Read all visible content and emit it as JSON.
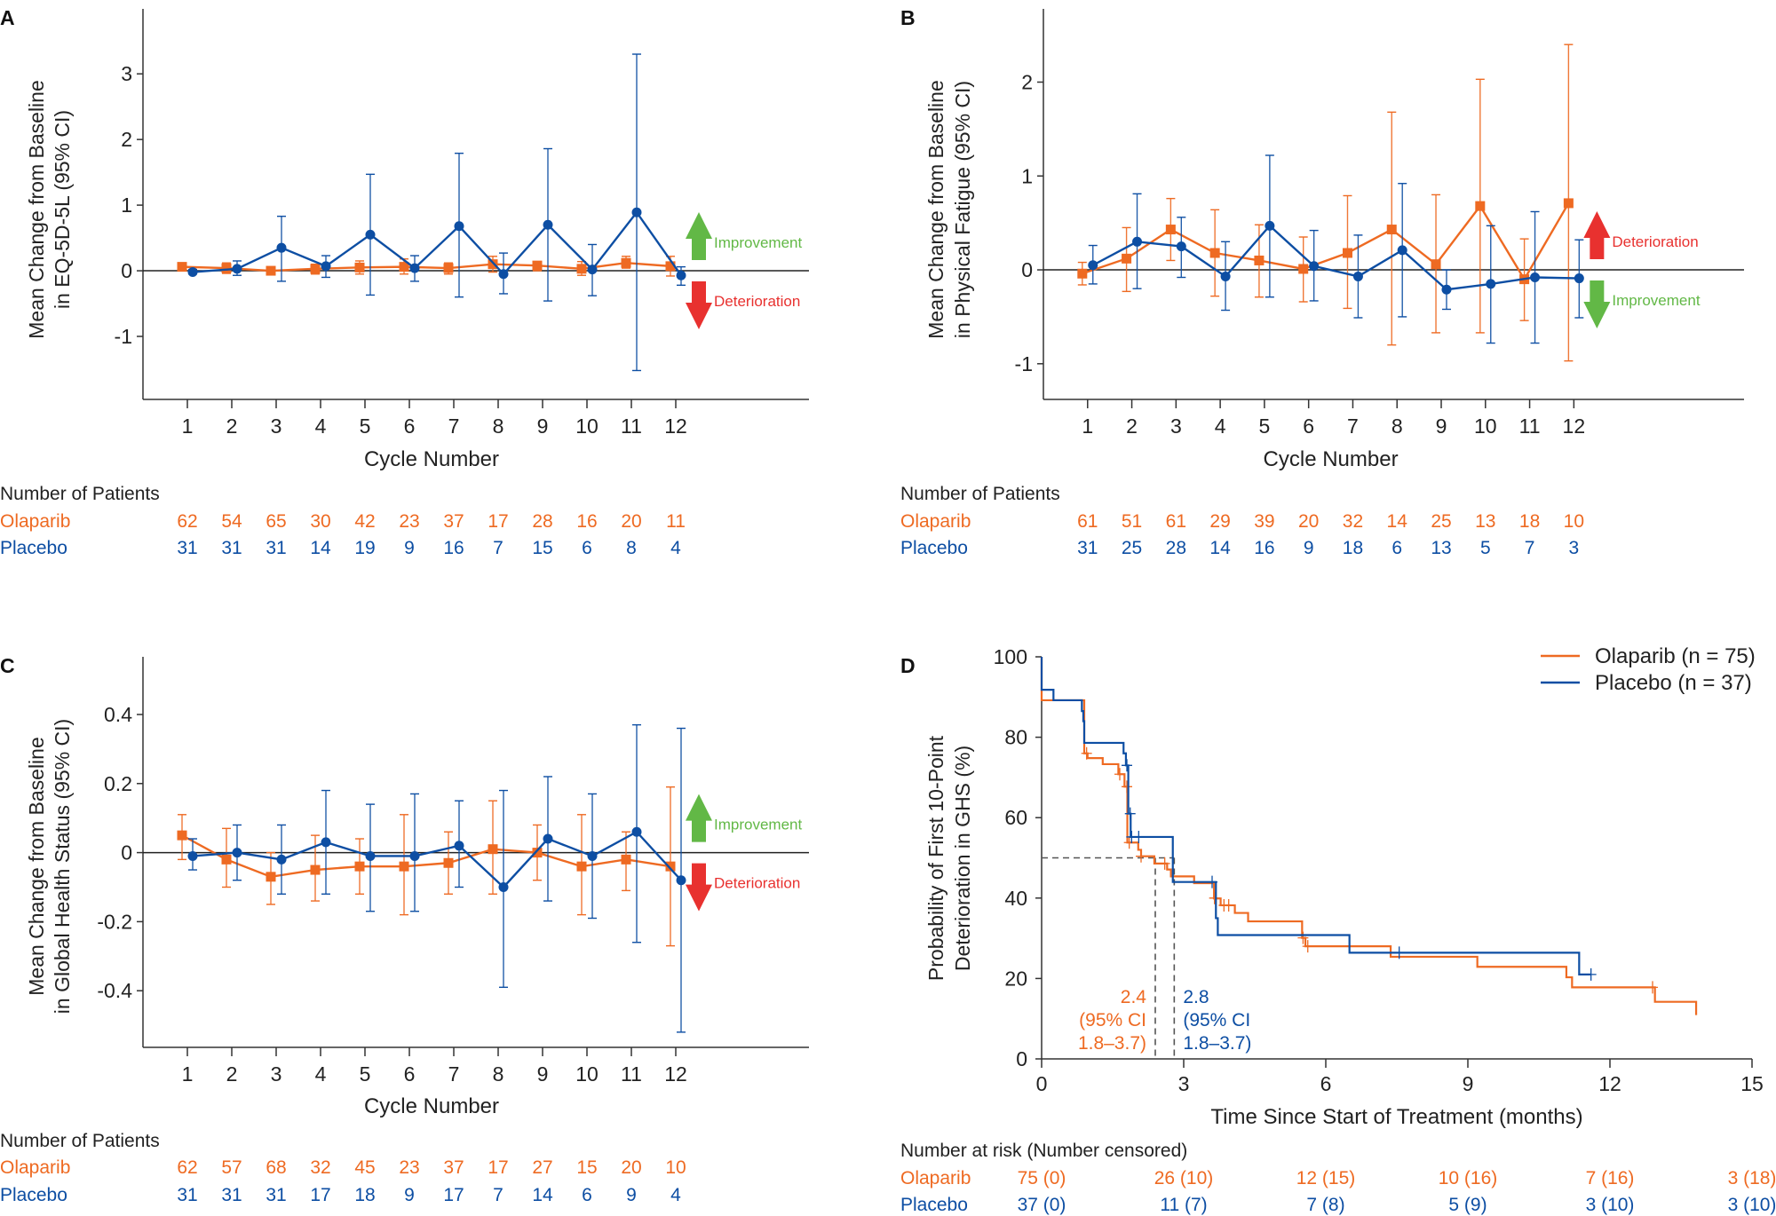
{
  "colors": {
    "olaparib": "#EE6A22",
    "placebo": "#0D4EA3",
    "improvement": "#62B846",
    "deterioration": "#E8312F",
    "axis": "#333333"
  },
  "chart_data": [
    {
      "panel": "A",
      "type": "line",
      "ylabel": [
        "Mean Change from Baseline",
        "in EQ-5D-5L (95% CI)"
      ],
      "xlabel": "Cycle Number",
      "categories": [
        1,
        2,
        3,
        4,
        5,
        6,
        7,
        8,
        9,
        10,
        11,
        12
      ],
      "yticks": [
        -1,
        0,
        1,
        2,
        3
      ],
      "ylim": [
        -1.96,
        3.99
      ],
      "xlim": [
        0,
        15
      ],
      "arrows": {
        "up": "Improvement",
        "down": "Deterioration",
        "up_color": "improvement",
        "down_color": "deterioration"
      },
      "series": [
        {
          "name": "Olaparib",
          "color": "#EE6A22",
          "marker": "square",
          "values": [
            0.06,
            0.04,
            0.0,
            0.03,
            0.05,
            0.06,
            0.04,
            0.1,
            0.08,
            0.03,
            0.12,
            0.07
          ],
          "ci_lower": [
            0.0,
            -0.04,
            -0.04,
            -0.05,
            -0.05,
            -0.05,
            -0.05,
            -0.02,
            0.0,
            -0.07,
            0.04,
            -0.08
          ],
          "ci_upper": [
            0.1,
            0.12,
            0.04,
            0.1,
            0.15,
            0.18,
            0.12,
            0.22,
            0.14,
            0.14,
            0.22,
            0.22
          ]
        },
        {
          "name": "Placebo",
          "color": "#0D4EA3",
          "marker": "circle",
          "values": [
            -0.02,
            0.03,
            0.35,
            0.07,
            0.55,
            0.04,
            0.68,
            -0.05,
            0.7,
            0.02,
            0.89,
            -0.07
          ],
          "ci_lower": [
            -0.05,
            -0.07,
            -0.16,
            -0.1,
            -0.37,
            -0.16,
            -0.4,
            -0.35,
            -0.46,
            -0.38,
            -1.52,
            -0.22
          ],
          "ci_upper": [
            0.02,
            0.15,
            0.83,
            0.23,
            1.47,
            0.23,
            1.79,
            0.27,
            1.86,
            0.4,
            3.3,
            0.06
          ]
        }
      ],
      "patients": {
        "label": "Number of Patients",
        "rows": [
          {
            "name": "Olaparib",
            "values": [
              62,
              54,
              65,
              30,
              42,
              23,
              37,
              17,
              28,
              16,
              20,
              11
            ]
          },
          {
            "name": "Placebo",
            "values": [
              31,
              31,
              31,
              14,
              19,
              9,
              16,
              7,
              15,
              6,
              8,
              4
            ]
          }
        ]
      }
    },
    {
      "panel": "B",
      "type": "line",
      "ylabel": [
        "Mean Change from Baseline",
        "in Physical Fatigue (95% CI)"
      ],
      "xlabel": "Cycle Number",
      "categories": [
        1,
        2,
        3,
        4,
        5,
        6,
        7,
        8,
        9,
        10,
        11,
        12
      ],
      "yticks": [
        -1,
        0,
        1,
        2
      ],
      "ylim": [
        -1.38,
        2.78
      ],
      "xlim": [
        0,
        15.85
      ],
      "arrows": {
        "up": "Deterioration",
        "down": "Improvement",
        "up_color": "deterioration",
        "down_color": "improvement"
      },
      "series": [
        {
          "name": "Olaparib",
          "color": "#EE6A22",
          "marker": "square",
          "values": [
            -0.04,
            0.12,
            0.43,
            0.18,
            0.1,
            0.01,
            0.18,
            0.43,
            0.06,
            0.68,
            -0.1,
            0.71
          ],
          "ci_lower": [
            -0.16,
            -0.23,
            0.1,
            -0.28,
            -0.29,
            -0.34,
            -0.41,
            -0.8,
            -0.67,
            -0.67,
            -0.54,
            -0.97
          ],
          "ci_upper": [
            0.08,
            0.45,
            0.76,
            0.64,
            0.48,
            0.35,
            0.79,
            1.68,
            0.8,
            2.03,
            0.33,
            2.4
          ]
        },
        {
          "name": "Placebo",
          "color": "#0D4EA3",
          "marker": "circle",
          "values": [
            0.05,
            0.3,
            0.25,
            -0.07,
            0.47,
            0.04,
            -0.07,
            0.21,
            -0.21,
            -0.15,
            -0.08,
            -0.09
          ],
          "ci_lower": [
            -0.15,
            -0.2,
            -0.08,
            -0.43,
            -0.29,
            -0.33,
            -0.51,
            -0.5,
            -0.42,
            -0.78,
            -0.78,
            -0.51
          ],
          "ci_upper": [
            0.26,
            0.81,
            0.56,
            0.3,
            1.22,
            0.42,
            0.37,
            0.92,
            0.0,
            0.47,
            0.62,
            0.32
          ]
        }
      ],
      "patients": {
        "label": "Number of Patients",
        "rows": [
          {
            "name": "Olaparib",
            "values": [
              61,
              51,
              61,
              29,
              39,
              20,
              32,
              14,
              25,
              13,
              18,
              10
            ]
          },
          {
            "name": "Placebo",
            "values": [
              31,
              25,
              28,
              14,
              16,
              9,
              18,
              6,
              13,
              5,
              7,
              3
            ]
          }
        ]
      }
    },
    {
      "panel": "C",
      "type": "line",
      "ylabel": [
        "Mean Change from Baseline",
        "in Global Health Status (95% CI)"
      ],
      "xlabel": "Cycle Number",
      "categories": [
        1,
        2,
        3,
        4,
        5,
        6,
        7,
        8,
        9,
        10,
        11,
        12
      ],
      "yticks": [
        -0.4,
        -0.2,
        0,
        0.2,
        0.4
      ],
      "ylim": [
        -0.564,
        0.567
      ],
      "xlim": [
        0,
        15
      ],
      "arrows": {
        "up": "Improvement",
        "down": "Deterioration",
        "up_color": "improvement",
        "down_color": "deterioration"
      },
      "series": [
        {
          "name": "Olaparib",
          "color": "#EE6A22",
          "marker": "square",
          "values": [
            0.05,
            -0.02,
            -0.07,
            -0.05,
            -0.04,
            -0.04,
            -0.03,
            0.01,
            0.0,
            -0.04,
            -0.02,
            -0.04
          ],
          "ci_lower": [
            -0.02,
            -0.1,
            -0.15,
            -0.14,
            -0.12,
            -0.18,
            -0.12,
            -0.12,
            -0.08,
            -0.18,
            -0.11,
            -0.27
          ],
          "ci_upper": [
            0.11,
            0.07,
            0.0,
            0.05,
            0.04,
            0.11,
            0.06,
            0.15,
            0.08,
            0.11,
            0.06,
            0.19
          ]
        },
        {
          "name": "Placebo",
          "color": "#0D4EA3",
          "marker": "circle",
          "values": [
            -0.01,
            0.0,
            -0.02,
            0.03,
            -0.01,
            -0.01,
            0.02,
            -0.1,
            0.04,
            -0.01,
            0.06,
            -0.08
          ],
          "ci_lower": [
            -0.05,
            -0.08,
            -0.12,
            -0.12,
            -0.17,
            -0.17,
            -0.1,
            -0.39,
            -0.14,
            -0.19,
            -0.26,
            -0.52
          ],
          "ci_upper": [
            0.04,
            0.08,
            0.08,
            0.18,
            0.14,
            0.17,
            0.15,
            0.18,
            0.22,
            0.17,
            0.37,
            0.36
          ]
        }
      ],
      "patients": {
        "label": "Number of Patients",
        "rows": [
          {
            "name": "Olaparib",
            "values": [
              62,
              57,
              68,
              32,
              45,
              23,
              37,
              17,
              27,
              15,
              20,
              10
            ]
          },
          {
            "name": "Placebo",
            "values": [
              31,
              31,
              31,
              17,
              18,
              9,
              17,
              7,
              14,
              6,
              9,
              4
            ]
          }
        ]
      }
    },
    {
      "panel": "D",
      "type": "line",
      "subtype": "kaplan-meier step",
      "ylabel": [
        "Probability of First 10-Point",
        "Deterioration in GHS (%)"
      ],
      "xlabel": "Time Since Start of Treatment (months)",
      "xticks": [
        0,
        3,
        6,
        9,
        12,
        15
      ],
      "yticks": [
        0,
        20,
        40,
        60,
        80,
        100
      ],
      "xlim": [
        0,
        15
      ],
      "ylim": [
        0,
        100
      ],
      "legend_position": "top-right",
      "series": [
        {
          "name": "Olaparib (n = 75)",
          "color": "#EE6A22",
          "steps": [
            [
              0,
              100
            ],
            [
              0,
              89.2
            ],
            [
              0.9,
              76
            ],
            [
              0.97,
              74.8
            ],
            [
              1.29,
              73.3
            ],
            [
              1.62,
              70.8
            ],
            [
              1.75,
              67.7
            ],
            [
              1.81,
              53.8
            ],
            [
              2.04,
              52
            ],
            [
              2.1,
              50.4
            ],
            [
              2.38,
              48.6
            ],
            [
              2.65,
              47.1
            ],
            [
              2.73,
              45.4
            ],
            [
              3.22,
              43.7
            ],
            [
              3.64,
              39.9
            ],
            [
              3.78,
              38.2
            ],
            [
              4.08,
              36.3
            ],
            [
              4.36,
              34.2
            ],
            [
              5.5,
              30.1
            ],
            [
              5.57,
              28
            ],
            [
              7.37,
              25.4
            ],
            [
              9.2,
              22.9
            ],
            [
              11.08,
              20.3
            ],
            [
              11.2,
              17.8
            ],
            [
              12.95,
              14.2
            ],
            [
              13.82,
              10.9
            ]
          ],
          "end": 13.82,
          "censored": [
            [
              0.95,
              76
            ],
            [
              1.65,
              70.8
            ],
            [
              1.8,
              67.7
            ],
            [
              1.85,
              53.8
            ],
            [
              2.1,
              50.4
            ],
            [
              2.6,
              48.6
            ],
            [
              3.65,
              40
            ],
            [
              3.85,
              38.2
            ],
            [
              3.95,
              38.2
            ],
            [
              5.52,
              30.1
            ],
            [
              5.62,
              28
            ],
            [
              12.9,
              17.8
            ]
          ],
          "median": 2.4,
          "median_text": [
            "2.4",
            "(95% CI",
            "1.8–3.7)"
          ]
        },
        {
          "name": "Placebo (n = 37)",
          "color": "#0D4EA3",
          "steps": [
            [
              0,
              100
            ],
            [
              0,
              91.8
            ],
            [
              0.25,
              89.2
            ],
            [
              0.85,
              86.5
            ],
            [
              0.88,
              84
            ],
            [
              0.9,
              78.6
            ],
            [
              1.73,
              76
            ],
            [
              1.78,
              73
            ],
            [
              1.83,
              61
            ],
            [
              1.88,
              55.2
            ],
            [
              2.77,
              44
            ],
            [
              3.68,
              35
            ],
            [
              3.72,
              30.8
            ],
            [
              6.5,
              26.4
            ],
            [
              11.35,
              21
            ]
          ],
          "end": 11.6,
          "censored": [
            [
              1.8,
              73
            ],
            [
              1.87,
              61
            ],
            [
              1.9,
              55.2
            ],
            [
              2.05,
              55.2
            ],
            [
              3.6,
              44
            ],
            [
              7.55,
              26.4
            ],
            [
              11.6,
              21
            ]
          ],
          "median": 2.8,
          "median_text": [
            "2.8",
            "(95% CI",
            "1.8–3.7)"
          ]
        }
      ],
      "risk_table": {
        "label": "Number at risk (Number censored)",
        "rows": [
          {
            "name": "Olaparib",
            "values": [
              "75 (0)",
              "26 (10)",
              "12 (15)",
              "10 (16)",
              "7 (16)",
              "3 (18)"
            ]
          },
          {
            "name": "Placebo",
            "values": [
              "37 (0)",
              "11 (7)",
              "7 (8)",
              "5 (9)",
              "3 (10)",
              "3 (10)"
            ]
          }
        ]
      }
    }
  ]
}
